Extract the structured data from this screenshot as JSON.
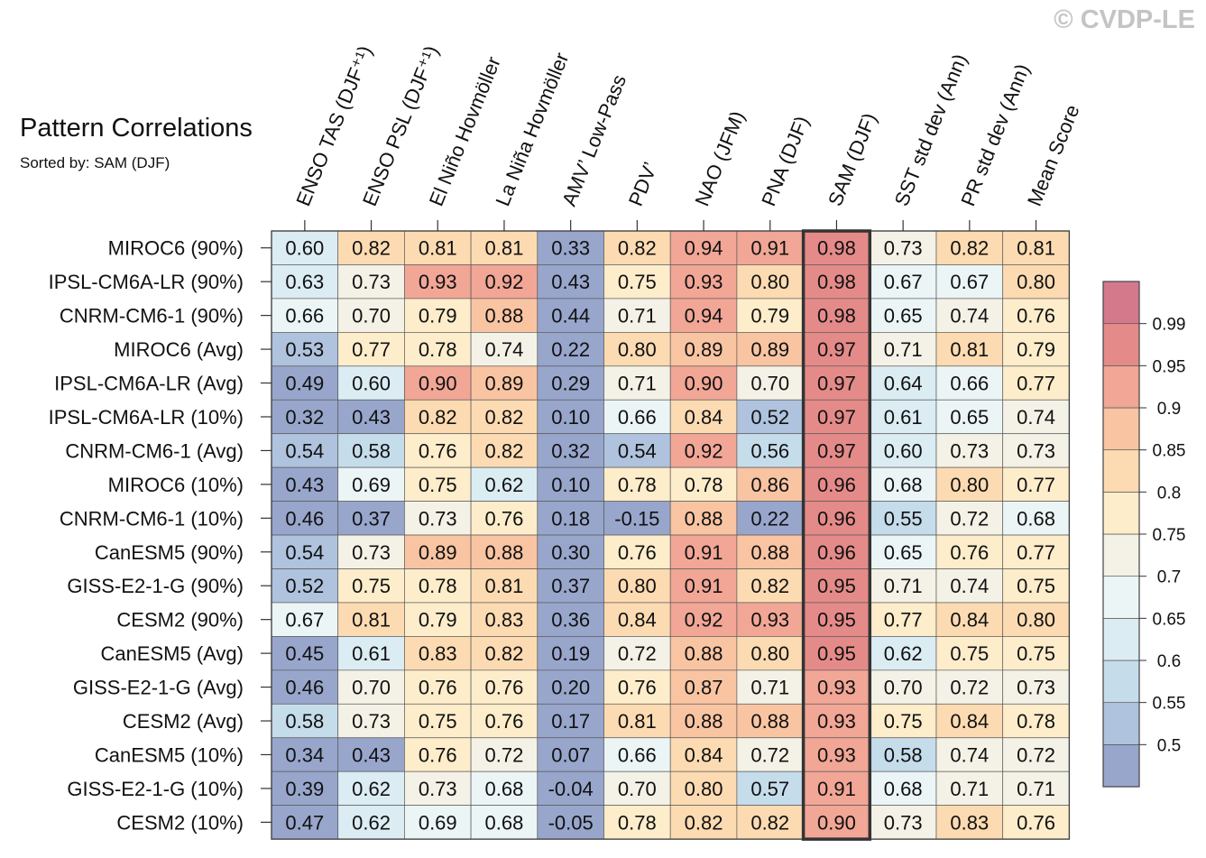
{
  "watermark": "© CVDP-LE",
  "chart_data": {
    "type": "heatmap",
    "title": "Pattern Correlations",
    "subtitle": "Sorted by: SAM (DJF)",
    "highlighted_column": "SAM (DJF)",
    "columns": [
      "ENSO TAS (DJF⁺¹)",
      "ENSO PSL (DJF⁺¹)",
      "El Niño Hovmöller",
      "La Niña Hovmöller",
      "AMV’ Low-Pass",
      "PDV’",
      "NAO (JFM)",
      "PNA (DJF)",
      "SAM (DJF)",
      "SST std dev (Ann)",
      "PR std dev (Ann)",
      "Mean Score"
    ],
    "rows": [
      "MIROC6 (90%)",
      "IPSL-CM6A-LR (90%)",
      "CNRM-CM6-1 (90%)",
      "MIROC6 (Avg)",
      "IPSL-CM6A-LR (Avg)",
      "IPSL-CM6A-LR (10%)",
      "CNRM-CM6-1 (Avg)",
      "MIROC6 (10%)",
      "CNRM-CM6-1 (10%)",
      "CanESM5 (90%)",
      "GISS-E2-1-G (90%)",
      "CESM2 (90%)",
      "CanESM5 (Avg)",
      "GISS-E2-1-G (Avg)",
      "CESM2 (Avg)",
      "CanESM5 (10%)",
      "GISS-E2-1-G (10%)",
      "CESM2 (10%)"
    ],
    "values": [
      [
        "0.60",
        "0.82",
        "0.81",
        "0.81",
        "0.33",
        "0.82",
        "0.94",
        "0.91",
        "0.98",
        "0.73",
        "0.82",
        "0.81"
      ],
      [
        "0.63",
        "0.73",
        "0.93",
        "0.92",
        "0.43",
        "0.75",
        "0.93",
        "0.80",
        "0.98",
        "0.67",
        "0.67",
        "0.80"
      ],
      [
        "0.66",
        "0.70",
        "0.79",
        "0.88",
        "0.44",
        "0.71",
        "0.94",
        "0.79",
        "0.98",
        "0.65",
        "0.74",
        "0.76"
      ],
      [
        "0.53",
        "0.77",
        "0.78",
        "0.74",
        "0.22",
        "0.80",
        "0.89",
        "0.89",
        "0.97",
        "0.71",
        "0.81",
        "0.79"
      ],
      [
        "0.49",
        "0.60",
        "0.90",
        "0.89",
        "0.29",
        "0.71",
        "0.90",
        "0.70",
        "0.97",
        "0.64",
        "0.66",
        "0.77"
      ],
      [
        "0.32",
        "0.43",
        "0.82",
        "0.82",
        "0.10",
        "0.66",
        "0.84",
        "0.52",
        "0.97",
        "0.61",
        "0.65",
        "0.74"
      ],
      [
        "0.54",
        "0.58",
        "0.76",
        "0.82",
        "0.32",
        "0.54",
        "0.92",
        "0.56",
        "0.97",
        "0.60",
        "0.73",
        "0.73"
      ],
      [
        "0.43",
        "0.69",
        "0.75",
        "0.62",
        "0.10",
        "0.78",
        "0.78",
        "0.86",
        "0.96",
        "0.68",
        "0.80",
        "0.77"
      ],
      [
        "0.46",
        "0.37",
        "0.73",
        "0.76",
        "0.18",
        "-0.15",
        "0.88",
        "0.22",
        "0.96",
        "0.55",
        "0.72",
        "0.68"
      ],
      [
        "0.54",
        "0.73",
        "0.89",
        "0.88",
        "0.30",
        "0.76",
        "0.91",
        "0.88",
        "0.96",
        "0.65",
        "0.76",
        "0.77"
      ],
      [
        "0.52",
        "0.75",
        "0.78",
        "0.81",
        "0.37",
        "0.80",
        "0.91",
        "0.82",
        "0.95",
        "0.71",
        "0.74",
        "0.75"
      ],
      [
        "0.67",
        "0.81",
        "0.79",
        "0.83",
        "0.36",
        "0.84",
        "0.92",
        "0.93",
        "0.95",
        "0.77",
        "0.84",
        "0.80"
      ],
      [
        "0.45",
        "0.61",
        "0.83",
        "0.82",
        "0.19",
        "0.72",
        "0.88",
        "0.80",
        "0.95",
        "0.62",
        "0.75",
        "0.75"
      ],
      [
        "0.46",
        "0.70",
        "0.76",
        "0.76",
        "0.20",
        "0.76",
        "0.87",
        "0.71",
        "0.93",
        "0.70",
        "0.72",
        "0.73"
      ],
      [
        "0.58",
        "0.73",
        "0.75",
        "0.76",
        "0.17",
        "0.81",
        "0.88",
        "0.88",
        "0.93",
        "0.75",
        "0.84",
        "0.78"
      ],
      [
        "0.34",
        "0.43",
        "0.76",
        "0.72",
        "0.07",
        "0.66",
        "0.84",
        "0.72",
        "0.93",
        "0.58",
        "0.74",
        "0.72"
      ],
      [
        "0.39",
        "0.62",
        "0.73",
        "0.68",
        "-0.04",
        "0.70",
        "0.80",
        "0.57",
        "0.91",
        "0.68",
        "0.71",
        "0.71"
      ],
      [
        "0.47",
        "0.62",
        "0.69",
        "0.68",
        "-0.05",
        "0.78",
        "0.82",
        "0.82",
        "0.90",
        "0.73",
        "0.83",
        "0.76"
      ]
    ],
    "colorbar": {
      "levels": [
        "0.5",
        "0.55",
        "0.6",
        "0.65",
        "0.7",
        "0.75",
        "0.8",
        "0.85",
        "0.9",
        "0.95",
        "0.99"
      ],
      "colors": [
        "#98a6cc",
        "#afc3de",
        "#c5dceb",
        "#dbecf3",
        "#ecf5f6",
        "#f4f2e6",
        "#fdedcb",
        "#fddbb2",
        "#f9c4a2",
        "#f1a696",
        "#e48b89",
        "#d4798c"
      ]
    }
  }
}
